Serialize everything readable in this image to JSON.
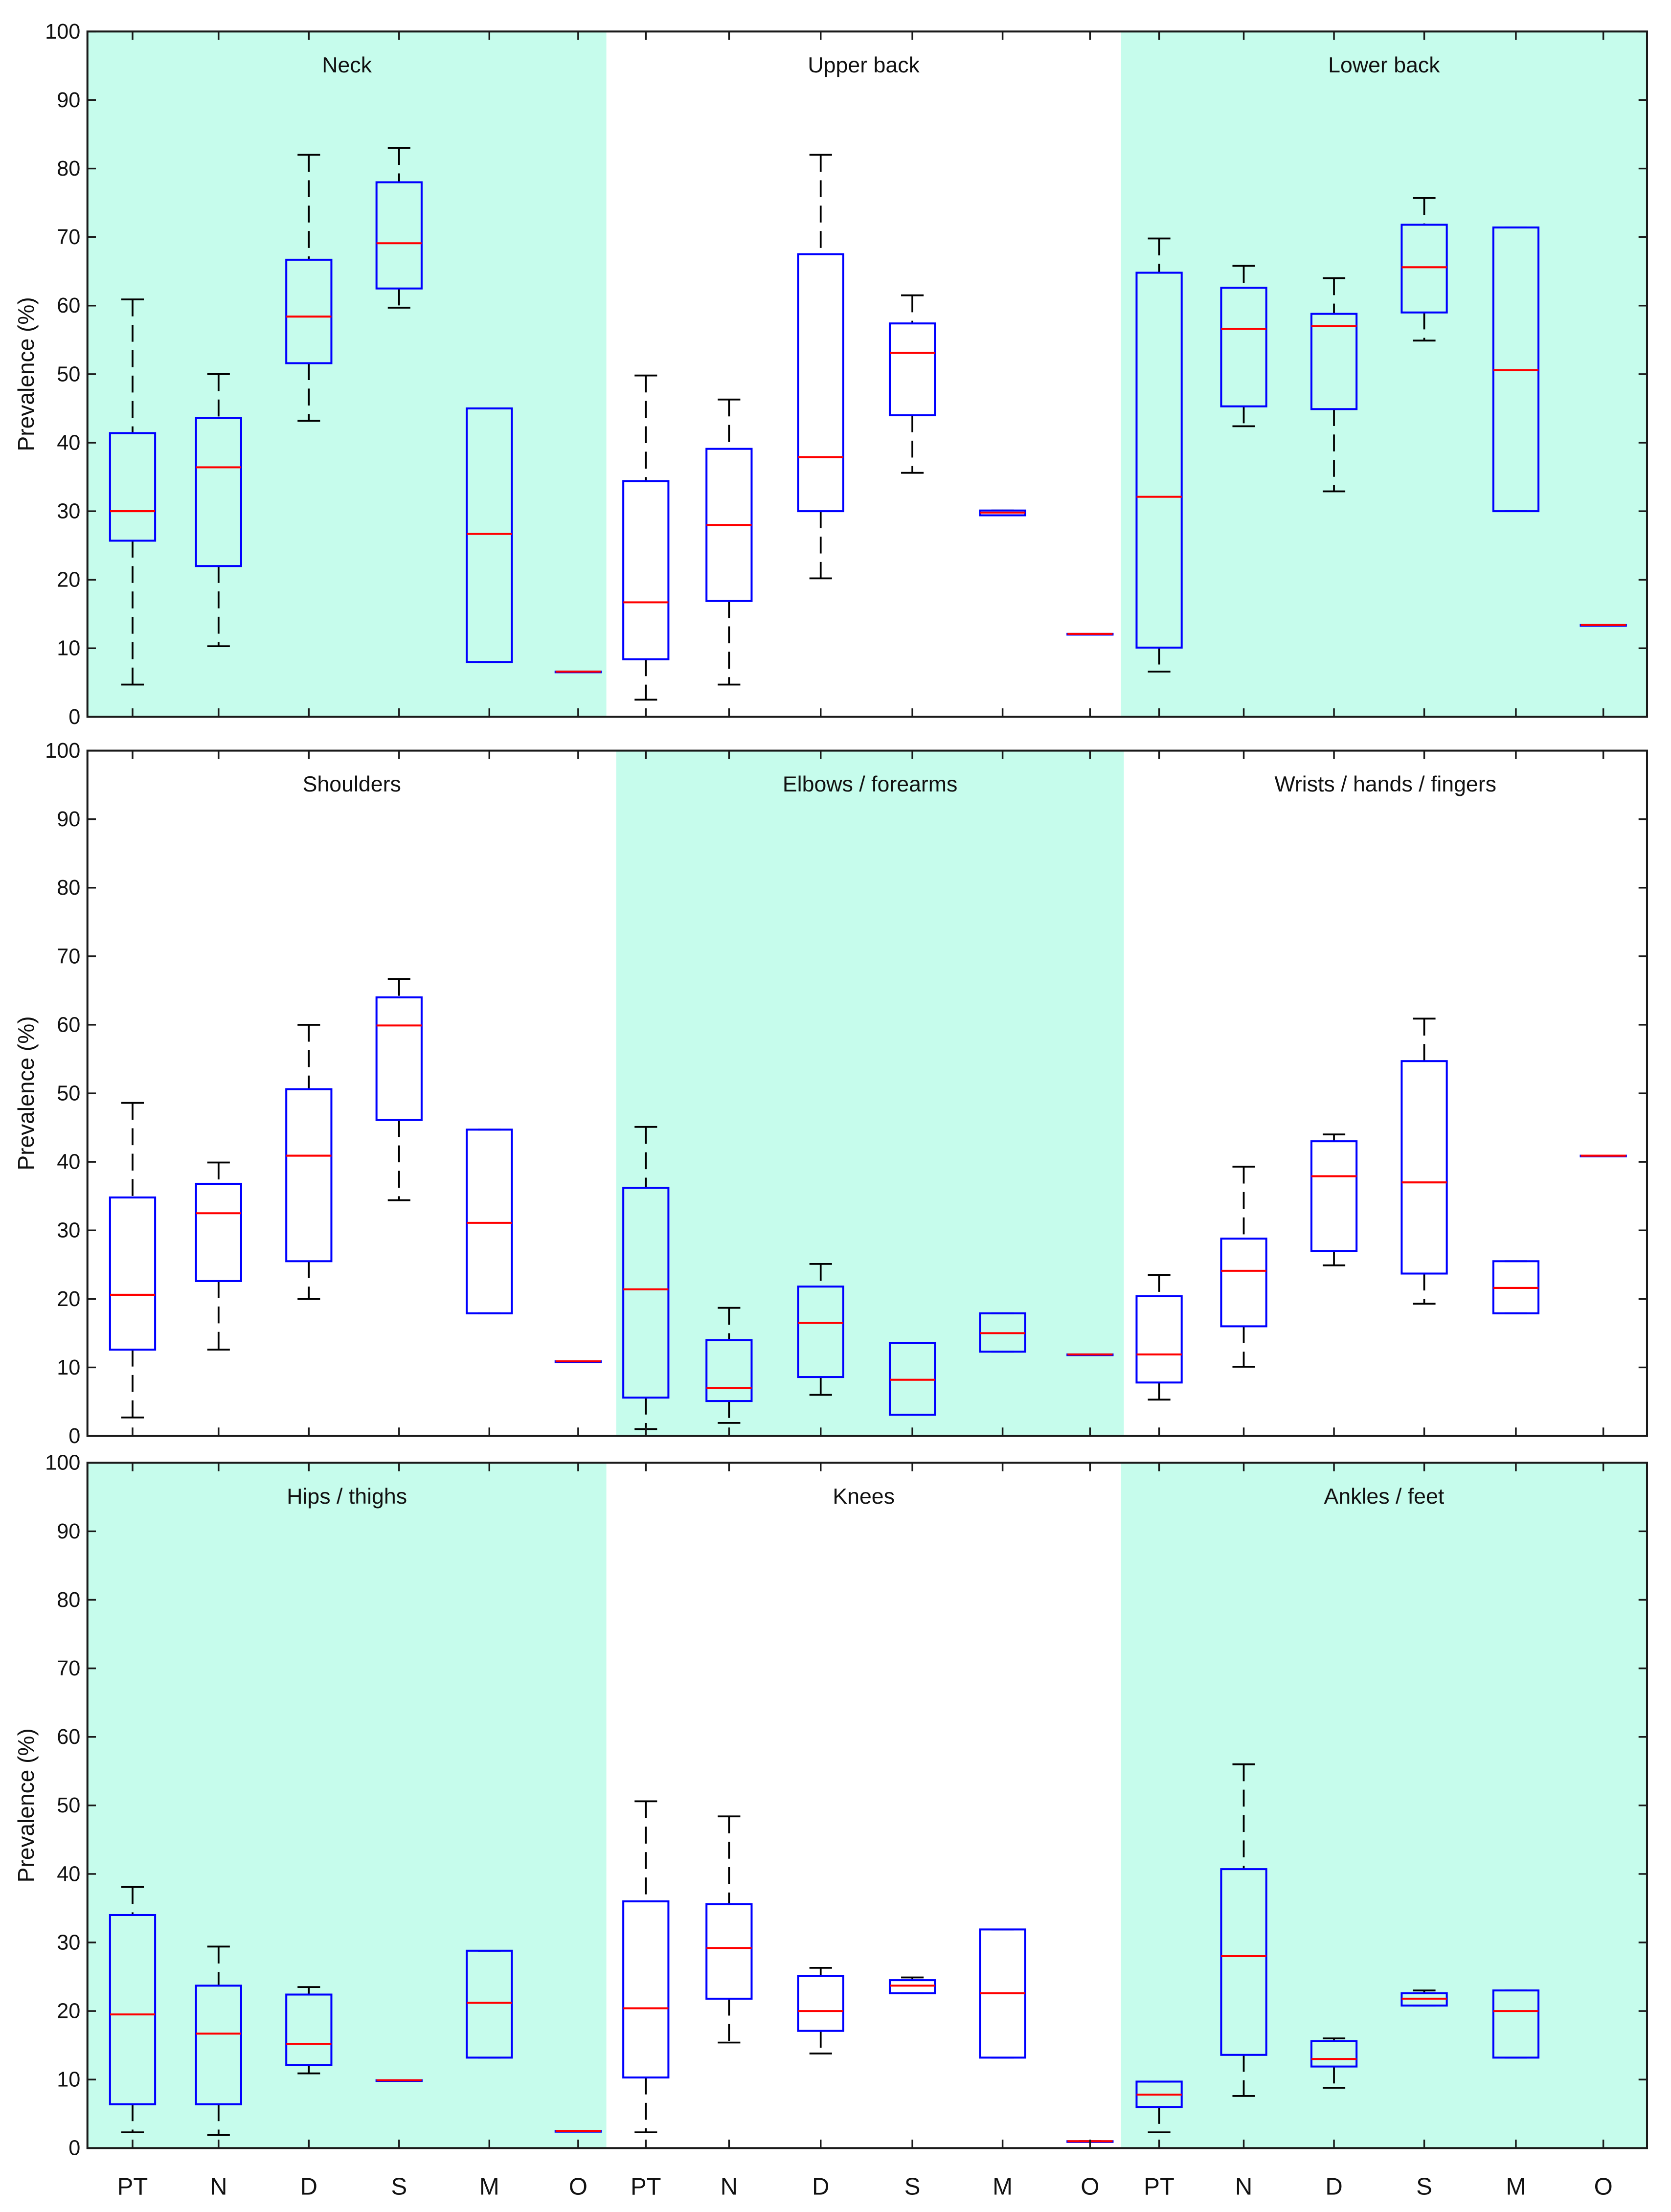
{
  "chart_data": {
    "type": "box",
    "ylabel": "Prevalence (%)",
    "ylim": [
      0,
      100
    ],
    "yticks": [
      "0",
      "10",
      "20",
      "30",
      "40",
      "50",
      "60",
      "70",
      "80",
      "90",
      "100"
    ],
    "categories": [
      "PT",
      "N",
      "D",
      "S",
      "M",
      "O"
    ],
    "box_format": [
      "whisker_low",
      "q1",
      "median",
      "q3",
      "whisker_high"
    ],
    "colors": {
      "box": "#0000ff",
      "median": "#ff0000",
      "whisker": "#000000",
      "shade": "#c6fcec",
      "frame": "#1a1a1a"
    },
    "panels": [
      {
        "row": 0,
        "title": "Neck",
        "shaded": true,
        "boxes": [
          [
            4.7,
            25.7,
            30,
            41.4,
            60.9
          ],
          [
            10.3,
            22,
            36.4,
            43.6,
            50
          ],
          [
            43.2,
            51.6,
            58.4,
            66.7,
            82
          ],
          [
            59.7,
            62.5,
            69.1,
            78,
            83
          ],
          [
            8,
            8,
            26.7,
            45,
            45
          ],
          [
            6.6,
            6.6,
            6.6,
            6.6,
            6.6
          ]
        ]
      },
      {
        "row": 0,
        "title": "Upper back",
        "shaded": false,
        "boxes": [
          [
            2.5,
            8.4,
            16.7,
            34.4,
            49.8
          ],
          [
            4.7,
            16.9,
            28,
            39.1,
            46.3
          ],
          [
            20.2,
            30,
            37.9,
            67.5,
            82
          ],
          [
            35.6,
            44,
            53.1,
            57.4,
            61.5
          ],
          [
            29.4,
            29.4,
            29.8,
            30.1,
            30.1
          ],
          [
            12.1,
            12.1,
            12.1,
            12.1,
            12.1
          ]
        ]
      },
      {
        "row": 0,
        "title": "Lower back",
        "shaded": true,
        "boxes": [
          [
            6.6,
            10.1,
            32.1,
            64.8,
            69.8
          ],
          [
            42.4,
            45.3,
            56.6,
            62.6,
            65.8
          ],
          [
            32.9,
            44.9,
            57,
            58.8,
            64
          ],
          [
            54.9,
            59,
            65.6,
            71.8,
            75.7
          ],
          [
            30,
            30,
            50.6,
            71.4,
            71.4
          ],
          [
            13.4,
            13.4,
            13.4,
            13.4,
            13.4
          ]
        ]
      },
      {
        "row": 1,
        "title": "Shoulders",
        "shaded": false,
        "boxes": [
          [
            2.7,
            12.6,
            20.6,
            34.8,
            48.6
          ],
          [
            12.6,
            22.6,
            32.5,
            36.8,
            39.9
          ],
          [
            20,
            25.5,
            40.9,
            50.6,
            60
          ],
          [
            34.4,
            46.1,
            59.9,
            64,
            66.7
          ],
          [
            17.9,
            17.9,
            31.1,
            44.7,
            44.7
          ],
          [
            10.9,
            10.9,
            10.9,
            10.9,
            10.9
          ]
        ]
      },
      {
        "row": 1,
        "title": "Elbows / forearms",
        "shaded": true,
        "boxes": [
          [
            1,
            5.6,
            21.4,
            36.2,
            45.1
          ],
          [
            1.9,
            5.1,
            7,
            14,
            18.7
          ],
          [
            6,
            8.6,
            16.5,
            21.8,
            25.1
          ],
          [
            3.1,
            3.1,
            8.2,
            13.6,
            13.6
          ],
          [
            12.3,
            12.3,
            15,
            17.9,
            17.9
          ],
          [
            11.9,
            11.9,
            11.9,
            11.9,
            11.9
          ]
        ]
      },
      {
        "row": 1,
        "title": "Wrists / hands / fingers",
        "shaded": false,
        "boxes": [
          [
            5.3,
            7.8,
            11.9,
            20.4,
            23.5
          ],
          [
            10.1,
            16,
            24.1,
            28.8,
            39.3
          ],
          [
            24.9,
            27,
            37.9,
            43,
            44
          ],
          [
            19.3,
            23.7,
            37,
            54.7,
            60.9
          ],
          [
            17.9,
            17.9,
            21.6,
            25.5,
            25.5
          ],
          [
            40.9,
            40.9,
            40.9,
            40.9,
            40.9
          ]
        ]
      },
      {
        "row": 2,
        "title": "Hips / thighs",
        "shaded": true,
        "boxes": [
          [
            2.3,
            6.4,
            19.5,
            34,
            38.1
          ],
          [
            1.9,
            6.4,
            16.7,
            23.7,
            29.4
          ],
          [
            10.9,
            12.1,
            15.2,
            22.4,
            23.5
          ],
          [
            9.9,
            9.9,
            9.9,
            9.9,
            9.9
          ],
          [
            13.2,
            13.2,
            21.2,
            28.8,
            28.8
          ],
          [
            2.5,
            2.5,
            2.5,
            2.5,
            2.5
          ]
        ]
      },
      {
        "row": 2,
        "title": "Knees",
        "shaded": false,
        "boxes": [
          [
            2.3,
            10.3,
            20.4,
            36,
            50.6
          ],
          [
            15.4,
            21.8,
            29.2,
            35.6,
            48.4
          ],
          [
            13.8,
            17.1,
            20,
            25.1,
            26.3
          ],
          [
            22.6,
            22.6,
            23.7,
            24.5,
            24.9
          ],
          [
            13.2,
            13.2,
            22.6,
            31.9,
            31.9
          ],
          [
            1,
            1,
            1,
            1,
            1
          ]
        ]
      },
      {
        "row": 2,
        "title": "Ankles / feet",
        "shaded": true,
        "boxes": [
          [
            2.3,
            6,
            7.8,
            9.7,
            9.7
          ],
          [
            7.6,
            13.6,
            28,
            40.7,
            56
          ],
          [
            8.8,
            11.9,
            13,
            15.6,
            16
          ],
          [
            20.8,
            20.8,
            21.8,
            22.6,
            23
          ],
          [
            13.2,
            13.2,
            20,
            23,
            23
          ],
          null
        ]
      }
    ]
  }
}
